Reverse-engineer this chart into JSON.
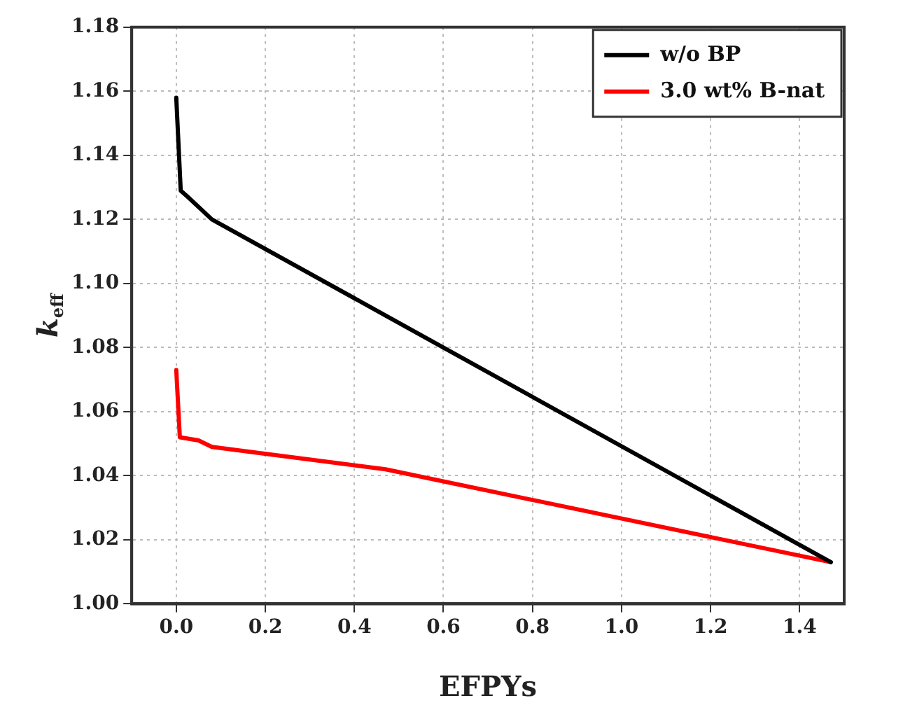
{
  "chart_data": {
    "type": "line",
    "xlabel": "EFPYs",
    "ylabel": "k$_{eff}$",
    "xlim": [
      -0.1,
      1.5
    ],
    "xticks": [
      {
        "value": 0,
        "label": "0.0"
      },
      {
        "value": 0.2,
        "label": "0.2"
      },
      {
        "value": 0.4,
        "label": "0.4"
      },
      {
        "value": 0.6,
        "label": "0.6"
      },
      {
        "value": 0.8,
        "label": "0.8"
      },
      {
        "value": 1.0,
        "label": "1.0"
      },
      {
        "value": 1.2,
        "label": "1.2"
      },
      {
        "value": 1.4,
        "label": "1.4"
      }
    ],
    "ylim": [
      1.0,
      1.18
    ],
    "yticks": [
      {
        "value": 1.0,
        "label": "1.00"
      },
      {
        "value": 1.02,
        "label": "1.02"
      },
      {
        "value": 1.04,
        "label": "1.04"
      },
      {
        "value": 1.06,
        "label": "1.06"
      },
      {
        "value": 1.08,
        "label": "1.08"
      },
      {
        "value": 1.1,
        "label": "1.10"
      },
      {
        "value": 1.12,
        "label": "1.12"
      },
      {
        "value": 1.14,
        "label": "1.14"
      },
      {
        "value": 1.16,
        "label": "1.16"
      },
      {
        "value": 1.18,
        "label": "1.18"
      }
    ],
    "grid": true,
    "legend": "top right",
    "marker": "none",
    "line_style": "solid",
    "series": [
      {
        "name": "w/o BP",
        "color": "#000000",
        "x": [
          0,
          0.01,
          0.026,
          0.08,
          0.47,
          1.47
        ],
        "values": [
          1.158,
          1.129,
          1.127,
          1.12,
          1.09,
          1.013
        ]
      },
      {
        "name": "3.0 wt% B-nat",
        "color": "#ff0000",
        "x": [
          0,
          0.008,
          0.05,
          0.08,
          0.47,
          1.47
        ],
        "values": [
          1.073,
          1.052,
          1.051,
          1.049,
          1.042,
          1.013
        ]
      }
    ]
  }
}
